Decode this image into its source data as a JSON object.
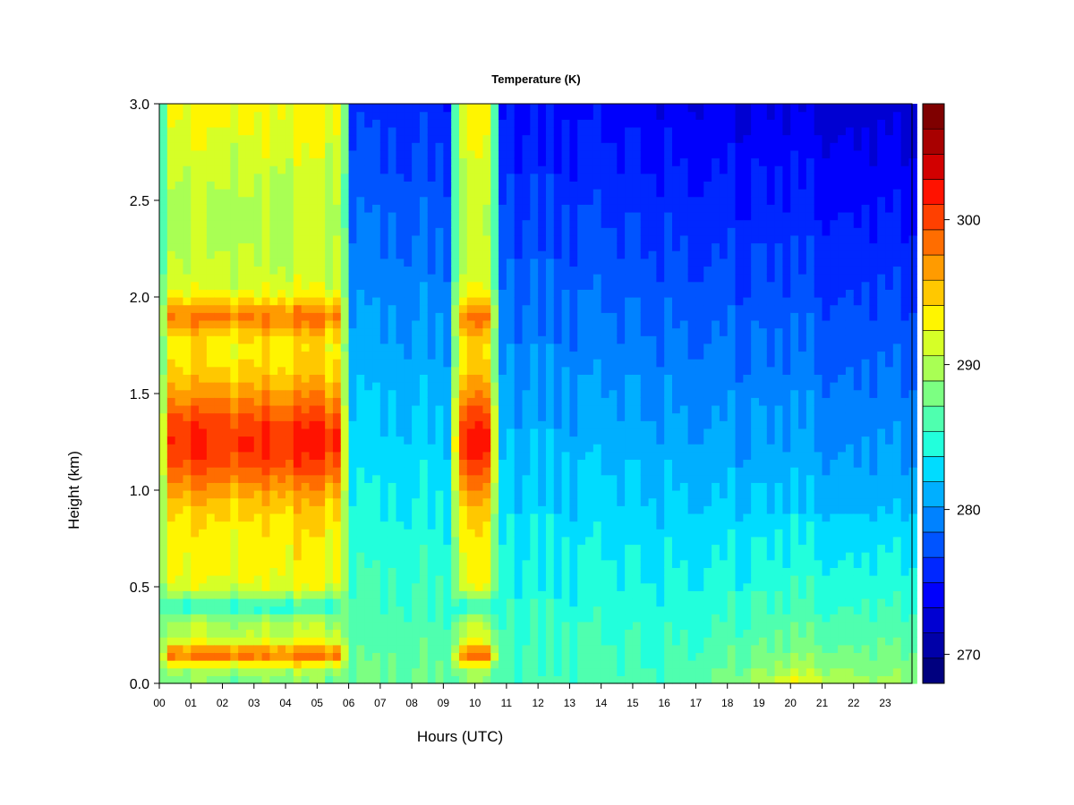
{
  "chart_data": {
    "type": "heatmap",
    "title": "Temperature (K)",
    "xlabel": "Hours (UTC)",
    "ylabel": "Height (km)",
    "xlim": [
      0,
      23.85
    ],
    "ylim": [
      0,
      3.0
    ],
    "x_ticks": [
      {
        "value": 0,
        "label": "00"
      },
      {
        "value": 1,
        "label": "01"
      },
      {
        "value": 2,
        "label": "02"
      },
      {
        "value": 3,
        "label": "03"
      },
      {
        "value": 4,
        "label": "04"
      },
      {
        "value": 5,
        "label": "05"
      },
      {
        "value": 6,
        "label": "06"
      },
      {
        "value": 7,
        "label": "07"
      },
      {
        "value": 8,
        "label": "08"
      },
      {
        "value": 9,
        "label": "09"
      },
      {
        "value": 10,
        "label": "10"
      },
      {
        "value": 11,
        "label": "11"
      },
      {
        "value": 12,
        "label": "12"
      },
      {
        "value": 13,
        "label": "13"
      },
      {
        "value": 14,
        "label": "14"
      },
      {
        "value": 15,
        "label": "15"
      },
      {
        "value": 16,
        "label": "16"
      },
      {
        "value": 17,
        "label": "17"
      },
      {
        "value": 18,
        "label": "18"
      },
      {
        "value": 19,
        "label": "19"
      },
      {
        "value": 20,
        "label": "20"
      },
      {
        "value": 21,
        "label": "21"
      },
      {
        "value": 22,
        "label": "22"
      },
      {
        "value": 23,
        "label": "23"
      }
    ],
    "y_ticks": [
      {
        "value": 0.0,
        "label": "0.0"
      },
      {
        "value": 0.5,
        "label": "0.5"
      },
      {
        "value": 1.0,
        "label": "1.0"
      },
      {
        "value": 1.5,
        "label": "1.5"
      },
      {
        "value": 2.0,
        "label": "2.0"
      },
      {
        "value": 2.5,
        "label": "2.5"
      },
      {
        "value": 3.0,
        "label": "3.0"
      }
    ],
    "colorbar": {
      "range": [
        268,
        308
      ],
      "levels": [
        268,
        270,
        272,
        274,
        276,
        278,
        280,
        282,
        284,
        286,
        288,
        290,
        292,
        294,
        296,
        298,
        300,
        302,
        304,
        306,
        308
      ],
      "colors": [
        "#00007F",
        "#0000A8",
        "#0000D2",
        "#0000FC",
        "#0027FF",
        "#0054FF",
        "#0082FF",
        "#00AFFF",
        "#00DCFF",
        "#22FFDC",
        "#4FFFAF",
        "#7CFF82",
        "#A9FF54",
        "#D6FF27",
        "#FFF500",
        "#FFC800",
        "#FF9B00",
        "#FF6D00",
        "#FF4000",
        "#FF1200",
        "#D20000",
        "#A80000",
        "#7F0000"
      ],
      "ticks": [
        {
          "value": 270,
          "label": "270"
        },
        {
          "value": 280,
          "label": "280"
        },
        {
          "value": 290,
          "label": "290"
        },
        {
          "value": 300,
          "label": "300"
        }
      ]
    },
    "z_summary": {
      "warm_bands_hours": [
        [
          0.0,
          6.0
        ],
        [
          9.2,
          10.8
        ]
      ],
      "warm_band_peak_K": 305,
      "warm_band_core_height_km": [
        1.1,
        1.4
      ],
      "warm_band_secondary_height_km": 1.9,
      "cool_layer_height_km": 0.4,
      "cool_layer_K": 284,
      "surface_warm_height_km": 0.15,
      "afternoon_near_surface_K": 289,
      "afternoon_upper_K": 273,
      "evening_surface_warm_hours": [
        17.0,
        23.0
      ],
      "evening_surface_peak_K": 297
    }
  }
}
